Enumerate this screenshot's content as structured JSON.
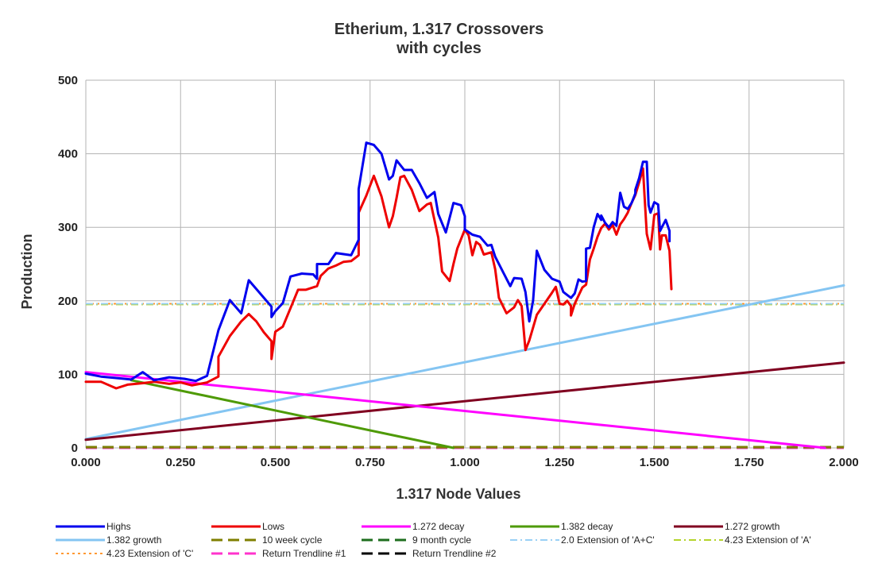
{
  "chart_data": {
    "type": "line",
    "title_line1": "Etherium, 1.317 Crossovers",
    "title_line2": "with cycles",
    "xlabel": "1.317 Node Values",
    "ylabel": "Production",
    "xlim": [
      0,
      2
    ],
    "ylim": [
      0,
      500
    ],
    "x_ticks": [
      "0.000",
      "0.250",
      "0.500",
      "0.750",
      "1.000",
      "1.250",
      "1.500",
      "1.750",
      "2.000"
    ],
    "x_tick_values": [
      0,
      0.25,
      0.5,
      0.75,
      1.0,
      1.25,
      1.5,
      1.75,
      2.0
    ],
    "y_ticks": [
      "0",
      "100",
      "200",
      "300",
      "400",
      "500"
    ],
    "y_tick_values": [
      0,
      100,
      200,
      300,
      400,
      500
    ],
    "grid": true,
    "legend_position": "bottom",
    "series": [
      {
        "name": "Highs",
        "color": "#0000ee",
        "style": "solid",
        "width": 3,
        "points": [
          [
            0,
            101
          ],
          [
            0.04,
            97
          ],
          [
            0.08,
            95
          ],
          [
            0.12,
            93
          ],
          [
            0.15,
            103
          ],
          [
            0.18,
            92
          ],
          [
            0.22,
            96
          ],
          [
            0.26,
            94
          ],
          [
            0.29,
            91
          ],
          [
            0.32,
            98
          ],
          [
            0.35,
            160
          ],
          [
            0.38,
            201
          ],
          [
            0.41,
            183
          ],
          [
            0.43,
            228
          ],
          [
            0.46,
            210
          ],
          [
            0.49,
            192
          ],
          [
            0.49,
            178
          ],
          [
            0.5,
            186
          ],
          [
            0.52,
            197
          ],
          [
            0.54,
            233
          ],
          [
            0.57,
            237
          ],
          [
            0.6,
            236
          ],
          [
            0.61,
            230
          ],
          [
            0.61,
            250
          ],
          [
            0.64,
            250
          ],
          [
            0.66,
            265
          ],
          [
            0.7,
            262
          ],
          [
            0.72,
            283
          ],
          [
            0.72,
            352
          ],
          [
            0.74,
            415
          ],
          [
            0.76,
            412
          ],
          [
            0.78,
            400
          ],
          [
            0.8,
            365
          ],
          [
            0.81,
            370
          ],
          [
            0.82,
            391
          ],
          [
            0.84,
            378
          ],
          [
            0.86,
            378
          ],
          [
            0.88,
            360
          ],
          [
            0.9,
            340
          ],
          [
            0.92,
            348
          ],
          [
            0.93,
            318
          ],
          [
            0.95,
            293
          ],
          [
            0.97,
            333
          ],
          [
            0.99,
            330
          ],
          [
            1.0,
            315
          ],
          [
            1.0,
            297
          ],
          [
            1.02,
            290
          ],
          [
            1.04,
            287
          ],
          [
            1.06,
            275
          ],
          [
            1.07,
            276
          ],
          [
            1.08,
            260
          ],
          [
            1.1,
            240
          ],
          [
            1.12,
            220
          ],
          [
            1.13,
            231
          ],
          [
            1.15,
            230
          ],
          [
            1.16,
            212
          ],
          [
            1.17,
            172
          ],
          [
            1.18,
            200
          ],
          [
            1.19,
            268
          ],
          [
            1.21,
            242
          ],
          [
            1.23,
            230
          ],
          [
            1.25,
            226
          ],
          [
            1.26,
            212
          ],
          [
            1.27,
            208
          ],
          [
            1.28,
            204
          ],
          [
            1.29,
            210
          ],
          [
            1.3,
            229
          ],
          [
            1.31,
            226
          ],
          [
            1.32,
            227
          ],
          [
            1.32,
            271
          ],
          [
            1.33,
            272
          ],
          [
            1.34,
            300
          ],
          [
            1.35,
            318
          ],
          [
            1.36,
            310
          ],
          [
            1.36,
            316
          ],
          [
            1.37,
            306
          ],
          [
            1.38,
            300
          ],
          [
            1.39,
            307
          ],
          [
            1.4,
            302
          ],
          [
            1.41,
            347
          ],
          [
            1.42,
            328
          ],
          [
            1.43,
            325
          ],
          [
            1.44,
            333
          ],
          [
            1.45,
            346
          ],
          [
            1.45,
            351
          ],
          [
            1.46,
            367
          ],
          [
            1.47,
            389
          ],
          [
            1.48,
            389
          ],
          [
            1.485,
            330
          ],
          [
            1.49,
            320
          ],
          [
            1.5,
            334
          ],
          [
            1.51,
            331
          ],
          [
            1.515,
            295
          ],
          [
            1.52,
            300
          ],
          [
            1.53,
            310
          ],
          [
            1.54,
            295
          ],
          [
            1.54,
            281
          ]
        ]
      },
      {
        "name": "Lows",
        "color": "#ee0000",
        "style": "solid",
        "width": 3,
        "points": [
          [
            0,
            90
          ],
          [
            0.04,
            90
          ],
          [
            0.08,
            81
          ],
          [
            0.11,
            86
          ],
          [
            0.15,
            88
          ],
          [
            0.18,
            90
          ],
          [
            0.22,
            87
          ],
          [
            0.25,
            89
          ],
          [
            0.28,
            85
          ],
          [
            0.32,
            89
          ],
          [
            0.35,
            97
          ],
          [
            0.35,
            124
          ],
          [
            0.38,
            152
          ],
          [
            0.41,
            172
          ],
          [
            0.43,
            182
          ],
          [
            0.45,
            172
          ],
          [
            0.47,
            157
          ],
          [
            0.49,
            145
          ],
          [
            0.49,
            121
          ],
          [
            0.5,
            158
          ],
          [
            0.52,
            165
          ],
          [
            0.54,
            190
          ],
          [
            0.56,
            215
          ],
          [
            0.58,
            215
          ],
          [
            0.61,
            220
          ],
          [
            0.62,
            234
          ],
          [
            0.64,
            244
          ],
          [
            0.66,
            248
          ],
          [
            0.68,
            253
          ],
          [
            0.7,
            254
          ],
          [
            0.72,
            262
          ],
          [
            0.72,
            320
          ],
          [
            0.74,
            343
          ],
          [
            0.76,
            370
          ],
          [
            0.78,
            342
          ],
          [
            0.8,
            300
          ],
          [
            0.81,
            315
          ],
          [
            0.82,
            340
          ],
          [
            0.83,
            368
          ],
          [
            0.84,
            370
          ],
          [
            0.86,
            351
          ],
          [
            0.88,
            322
          ],
          [
            0.9,
            331
          ],
          [
            0.91,
            333
          ],
          [
            0.93,
            286
          ],
          [
            0.94,
            240
          ],
          [
            0.96,
            227
          ],
          [
            0.97,
            250
          ],
          [
            0.98,
            271
          ],
          [
            1.0,
            297
          ],
          [
            1.01,
            289
          ],
          [
            1.02,
            262
          ],
          [
            1.03,
            280
          ],
          [
            1.04,
            276
          ],
          [
            1.05,
            263
          ],
          [
            1.07,
            266
          ],
          [
            1.08,
            243
          ],
          [
            1.09,
            204
          ],
          [
            1.11,
            183
          ],
          [
            1.13,
            191
          ],
          [
            1.14,
            201
          ],
          [
            1.15,
            193
          ],
          [
            1.16,
            133
          ],
          [
            1.17,
            146
          ],
          [
            1.19,
            181
          ],
          [
            1.21,
            196
          ],
          [
            1.23,
            211
          ],
          [
            1.24,
            219
          ],
          [
            1.25,
            196
          ],
          [
            1.26,
            195
          ],
          [
            1.27,
            200
          ],
          [
            1.28,
            193
          ],
          [
            1.28,
            180
          ],
          [
            1.29,
            196
          ],
          [
            1.31,
            218
          ],
          [
            1.32,
            222
          ],
          [
            1.33,
            256
          ],
          [
            1.34,
            271
          ],
          [
            1.35,
            287
          ],
          [
            1.36,
            299
          ],
          [
            1.37,
            305
          ],
          [
            1.38,
            297
          ],
          [
            1.39,
            303
          ],
          [
            1.4,
            290
          ],
          [
            1.41,
            304
          ],
          [
            1.42,
            311
          ],
          [
            1.43,
            320
          ],
          [
            1.44,
            333
          ],
          [
            1.45,
            344
          ],
          [
            1.46,
            361
          ],
          [
            1.47,
            380
          ],
          [
            1.475,
            335
          ],
          [
            1.48,
            291
          ],
          [
            1.49,
            270
          ],
          [
            1.5,
            317
          ],
          [
            1.51,
            319
          ],
          [
            1.515,
            270
          ],
          [
            1.52,
            289
          ],
          [
            1.53,
            289
          ],
          [
            1.54,
            268
          ],
          [
            1.545,
            216
          ]
        ]
      },
      {
        "name": "1.272 decay",
        "color": "#ff00ff",
        "style": "solid",
        "width": 3,
        "points": [
          [
            0,
            103
          ],
          [
            1.95,
            0
          ]
        ]
      },
      {
        "name": "1.382 decay",
        "color": "#4e9a06",
        "style": "solid",
        "width": 3,
        "points": [
          [
            0.12,
            92
          ],
          [
            0.97,
            0
          ]
        ]
      },
      {
        "name": "1.272 growth",
        "color": "#800020",
        "style": "solid",
        "width": 3,
        "points": [
          [
            0,
            11
          ],
          [
            2,
            116
          ]
        ]
      },
      {
        "name": "1.382 growth",
        "color": "#84c5f2",
        "style": "solid",
        "width": 3,
        "points": [
          [
            0,
            12
          ],
          [
            2,
            221
          ]
        ]
      },
      {
        "name": "10 week cycle",
        "color": "#7f7f00",
        "style": "dash",
        "width": 3,
        "points": [
          [
            0,
            1
          ],
          [
            2,
            1
          ]
        ]
      },
      {
        "name": "9 month cycle",
        "color": "#1e6e1e",
        "style": "dash",
        "width": 3,
        "points": [
          [
            0,
            1
          ],
          [
            2,
            1
          ]
        ]
      },
      {
        "name": "2.0 Extension of 'A+C'",
        "color": "#9ad1f5",
        "style": "dashdot",
        "width": 2,
        "points": [
          [
            0,
            196
          ],
          [
            2,
            196
          ]
        ]
      },
      {
        "name": "4.23 Extension of 'A'",
        "color": "#b4d42a",
        "style": "dashdot",
        "width": 2,
        "points": [
          [
            0,
            195
          ],
          [
            2,
            195
          ]
        ]
      },
      {
        "name": "4.23 Extension of 'C'",
        "color": "#ff9933",
        "style": "dot",
        "width": 2,
        "points": [
          [
            0,
            196
          ],
          [
            2,
            196
          ]
        ]
      },
      {
        "name": "Return Trendline #1",
        "color": "#ff33cc",
        "style": "dash",
        "width": 3,
        "points": [
          [
            0,
            0
          ],
          [
            2,
            0
          ]
        ]
      },
      {
        "name": "Return Trendline #2",
        "color": "#000000",
        "style": "dash",
        "width": 3,
        "points": [
          [
            0,
            0
          ],
          [
            2,
            0
          ]
        ]
      }
    ]
  }
}
